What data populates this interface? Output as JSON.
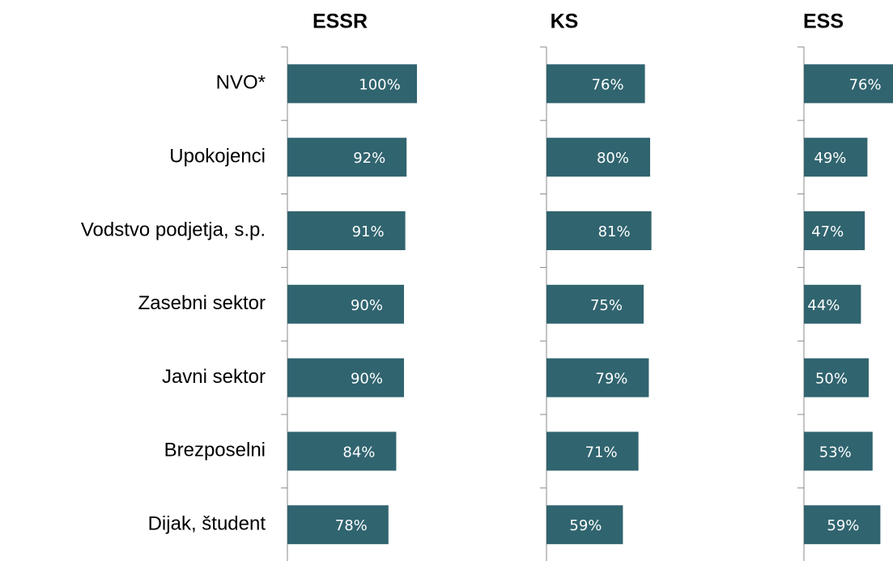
{
  "chart_data": [
    {
      "type": "bar",
      "orientation": "horizontal",
      "title": "ESSR",
      "categories": [
        "NVO*",
        "Upokojenci",
        "Vodstvo podjetja, s.p.",
        "Zasebni sektor",
        "Javni sektor",
        "Brezposelni",
        "Dijak, študent"
      ],
      "values": [
        100,
        92,
        91,
        90,
        90,
        84,
        78
      ],
      "value_labels": [
        "100%",
        "92%",
        "91%",
        "90%",
        "90%",
        "84%",
        "78%"
      ],
      "color": "#30646f",
      "xlim": [
        0,
        100
      ]
    },
    {
      "type": "bar",
      "orientation": "horizontal",
      "title": "KS",
      "values": [
        76,
        80,
        81,
        75,
        79,
        71,
        59
      ],
      "value_labels": [
        "76%",
        "80%",
        "81%",
        "75%",
        "79%",
        "71%",
        "59%"
      ],
      "color": "#30646f",
      "xlim": [
        0,
        100
      ]
    },
    {
      "type": "bar",
      "orientation": "horizontal",
      "title": "ESS",
      "values": [
        76,
        49,
        47,
        44,
        50,
        53,
        59
      ],
      "value_labels": [
        "76%",
        "49%",
        "47%",
        "44%",
        "50%",
        "53%",
        "59%"
      ],
      "color": "#30646f",
      "xlim": [
        0,
        100
      ]
    }
  ]
}
